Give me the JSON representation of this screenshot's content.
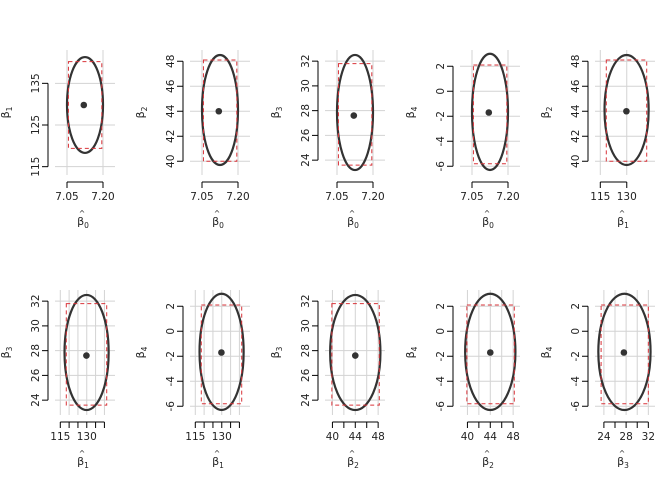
{
  "figure": {
    "colors": {
      "ellipse": "#333333",
      "bounds": "#d9343a",
      "grid": "#d3d3d3",
      "point": "#333333",
      "axis": "#000000"
    }
  },
  "chart_data": [
    {
      "type": "scatter",
      "panel": "ellipse",
      "x_param": "β̂0",
      "y_param": "β1",
      "xlabel": {
        "base": "β",
        "hat": "^",
        "sub": "0"
      },
      "ylabel": {
        "base": "β",
        "sub": "1"
      },
      "xlim": [
        7.0,
        7.25
      ],
      "ylim": [
        113,
        143
      ],
      "xticks": [
        7.05,
        7.2
      ],
      "xtick_labels": [
        "7.05",
        "7.20"
      ],
      "yticks": [
        115,
        125,
        135
      ],
      "ytick_labels": [
        "115",
        "125",
        "135"
      ],
      "grid": true,
      "center": [
        7.12,
        129.8
      ],
      "ellipse": {
        "x_range": [
          7.05,
          7.2
        ],
        "y_range": [
          118.3,
          141.3
        ]
      },
      "bounds": {
        "x": [
          7.056,
          7.195
        ],
        "y": [
          119.4,
          140.2
        ]
      }
    },
    {
      "type": "scatter",
      "panel": "ellipse",
      "x_param": "β̂0",
      "y_param": "β2",
      "xlabel": {
        "base": "β",
        "hat": "^",
        "sub": "0"
      },
      "ylabel": {
        "base": "β",
        "sub": "2"
      },
      "xlim": [
        7.0,
        7.25
      ],
      "ylim": [
        38.9,
        48.9
      ],
      "xticks": [
        7.05,
        7.2
      ],
      "xtick_labels": [
        "7.05",
        "7.20"
      ],
      "yticks": [
        40,
        42,
        44,
        46,
        48
      ],
      "ytick_labels": [
        "40",
        "42",
        "44",
        "46",
        "48"
      ],
      "grid": true,
      "center": [
        7.12,
        44.0
      ],
      "ellipse": {
        "x_range": [
          7.05,
          7.2
        ],
        "y_range": [
          39.7,
          48.5
        ]
      },
      "bounds": {
        "x": [
          7.056,
          7.195
        ],
        "y": [
          40.0,
          48.1
        ]
      }
    },
    {
      "type": "scatter",
      "panel": "ellipse",
      "x_param": "β̂0",
      "y_param": "β3",
      "xlabel": {
        "base": "β",
        "hat": "^",
        "sub": "0"
      },
      "ylabel": {
        "base": "β",
        "sub": "3"
      },
      "xlim": [
        7.0,
        7.25
      ],
      "ylim": [
        22.8,
        32.9
      ],
      "xticks": [
        7.05,
        7.2
      ],
      "xtick_labels": [
        "7.05",
        "7.20"
      ],
      "yticks": [
        24,
        26,
        28,
        30,
        32
      ],
      "ytick_labels": [
        "24",
        "26",
        "28",
        "30",
        "32"
      ],
      "grid": true,
      "center": [
        7.12,
        27.6
      ],
      "ellipse": {
        "x_range": [
          7.05,
          7.2
        ],
        "y_range": [
          23.2,
          32.5
        ]
      },
      "bounds": {
        "x": [
          7.056,
          7.195
        ],
        "y": [
          23.6,
          31.8
        ]
      }
    },
    {
      "type": "scatter",
      "panel": "ellipse",
      "x_param": "β̂0",
      "y_param": "β4",
      "xlabel": {
        "base": "β",
        "hat": "^",
        "sub": "0"
      },
      "ylabel": {
        "base": "β",
        "sub": "4"
      },
      "xlim": [
        7.0,
        7.25
      ],
      "ylim": [
        -6.7,
        3.3
      ],
      "xticks": [
        7.05,
        7.2
      ],
      "xtick_labels": [
        "7.05",
        "7.20"
      ],
      "yticks": [
        -6,
        -4,
        -2,
        0,
        2
      ],
      "ytick_labels": [
        "-6",
        "-4",
        "-2",
        "0",
        "2"
      ],
      "grid": true,
      "center": [
        7.12,
        -1.7
      ],
      "ellipse": {
        "x_range": [
          7.05,
          7.2
        ],
        "y_range": [
          -6.3,
          3.0
        ]
      },
      "bounds": {
        "x": [
          7.056,
          7.195
        ],
        "y": [
          -5.8,
          2.1
        ]
      }
    },
    {
      "type": "scatter",
      "panel": "ellipse",
      "x_param": "β̂1",
      "y_param": "β2",
      "xlabel": {
        "base": "β",
        "hat": "^",
        "sub": "1"
      },
      "ylabel": {
        "base": "β",
        "sub": "2"
      },
      "xlim": [
        112,
        146
      ],
      "ylim": [
        38.9,
        48.9
      ],
      "xticks": [
        115,
        130
      ],
      "xtick_labels": [
        "115",
        "130"
      ],
      "yticks": [
        40,
        42,
        44,
        46,
        48
      ],
      "ytick_labels": [
        "40",
        "42",
        "44",
        "46",
        "48"
      ],
      "grid": true,
      "center": [
        129.8,
        44.0
      ],
      "ellipse": {
        "x_range": [
          117.4,
          142.4
        ],
        "y_range": [
          39.7,
          48.5
        ]
      },
      "bounds": {
        "x": [
          118.4,
          141.3
        ],
        "y": [
          40.0,
          48.1
        ]
      }
    },
    {
      "type": "scatter",
      "panel": "ellipse",
      "x_param": "β̂1",
      "y_param": "β3",
      "xlabel": {
        "base": "β",
        "hat": "^",
        "sub": "1"
      },
      "ylabel": {
        "base": "β",
        "sub": "3"
      },
      "xlim": [
        112,
        146
      ],
      "ylim": [
        22.8,
        32.9
      ],
      "xticks": [
        115,
        120,
        125,
        130,
        135,
        140
      ],
      "xtick_labels": [
        "115",
        "",
        "",
        "130",
        "",
        ""
      ],
      "yticks": [
        24,
        26,
        28,
        30,
        32
      ],
      "ytick_labels": [
        "24",
        "26",
        "28",
        "30",
        "32"
      ],
      "grid": true,
      "center": [
        129.8,
        27.6
      ],
      "ellipse": {
        "x_range": [
          117.4,
          142.4
        ],
        "y_range": [
          23.2,
          32.5
        ]
      },
      "bounds": {
        "x": [
          118.4,
          141.3
        ],
        "y": [
          23.6,
          31.8
        ]
      }
    },
    {
      "type": "scatter",
      "panel": "ellipse",
      "x_param": "β̂1",
      "y_param": "β4",
      "xlabel": {
        "base": "β",
        "hat": "^",
        "sub": "1"
      },
      "ylabel": {
        "base": "β",
        "sub": "4"
      },
      "xlim": [
        112,
        146
      ],
      "ylim": [
        -6.7,
        3.3
      ],
      "xticks": [
        115,
        120,
        125,
        130,
        135,
        140
      ],
      "xtick_labels": [
        "115",
        "",
        "",
        "130",
        "",
        ""
      ],
      "yticks": [
        -6,
        -4,
        -2,
        0,
        2
      ],
      "ytick_labels": [
        "-6",
        "-4",
        "-2",
        "0",
        "2"
      ],
      "grid": true,
      "center": [
        129.8,
        -1.7
      ],
      "ellipse": {
        "x_range": [
          117.4,
          142.4
        ],
        "y_range": [
          -6.3,
          3.0
        ]
      },
      "bounds": {
        "x": [
          118.4,
          141.3
        ],
        "y": [
          -5.8,
          2.1
        ]
      }
    },
    {
      "type": "scatter",
      "panel": "ellipse",
      "x_param": "β̂2",
      "y_param": "β3",
      "xlabel": {
        "base": "β",
        "hat": "^",
        "sub": "2"
      },
      "ylabel": {
        "base": "β",
        "sub": "3"
      },
      "xlim": [
        38.7,
        49.2
      ],
      "ylim": [
        22.8,
        32.9
      ],
      "xticks": [
        40,
        42,
        44,
        46,
        48
      ],
      "xtick_labels": [
        "40",
        "",
        "44",
        "",
        "48"
      ],
      "yticks": [
        24,
        26,
        28,
        30,
        32
      ],
      "ytick_labels": [
        "24",
        "26",
        "28",
        "30",
        "32"
      ],
      "grid": true,
      "center": [
        44.0,
        27.6
      ],
      "ellipse": {
        "x_range": [
          39.6,
          48.4
        ],
        "y_range": [
          23.2,
          32.5
        ]
      },
      "bounds": {
        "x": [
          39.9,
          48.2
        ],
        "y": [
          23.6,
          31.8
        ]
      }
    },
    {
      "type": "scatter",
      "panel": "ellipse",
      "x_param": "β̂2",
      "y_param": "β4",
      "xlabel": {
        "base": "β",
        "hat": "^",
        "sub": "2"
      },
      "ylabel": {
        "base": "β",
        "sub": "4"
      },
      "xlim": [
        38.7,
        49.2
      ],
      "ylim": [
        -6.7,
        3.3
      ],
      "xticks": [
        40,
        42,
        44,
        46,
        48
      ],
      "xtick_labels": [
        "40",
        "",
        "44",
        "",
        "48"
      ],
      "yticks": [
        -6,
        -4,
        -2,
        0,
        2
      ],
      "ytick_labels": [
        "-6",
        "-4",
        "-2",
        "0",
        "2"
      ],
      "grid": true,
      "center": [
        44.0,
        -1.7
      ],
      "ellipse": {
        "x_range": [
          39.6,
          48.4
        ],
        "y_range": [
          -6.3,
          3.0
        ]
      },
      "bounds": {
        "x": [
          39.9,
          48.2
        ],
        "y": [
          -5.8,
          2.1
        ]
      }
    },
    {
      "type": "scatter",
      "panel": "ellipse",
      "x_param": "β̂3",
      "y_param": "β4",
      "xlabel": {
        "base": "β",
        "hat": "^",
        "sub": "3"
      },
      "ylabel": {
        "base": "β",
        "sub": "4"
      },
      "xlim": [
        22.4,
        33.2
      ],
      "ylim": [
        -6.7,
        3.3
      ],
      "xticks": [
        24,
        26,
        28,
        30,
        32
      ],
      "xtick_labels": [
        "24",
        "",
        "28",
        "",
        "32"
      ],
      "yticks": [
        -6,
        -4,
        -2,
        0,
        2
      ],
      "ytick_labels": [
        "-6",
        "-4",
        "-2",
        "0",
        "2"
      ],
      "grid": true,
      "center": [
        27.6,
        -1.7
      ],
      "ellipse": {
        "x_range": [
          23.0,
          32.4
        ],
        "y_range": [
          -6.3,
          3.0
        ]
      },
      "bounds": {
        "x": [
          23.5,
          32.0
        ],
        "y": [
          -5.8,
          2.1
        ]
      }
    }
  ]
}
